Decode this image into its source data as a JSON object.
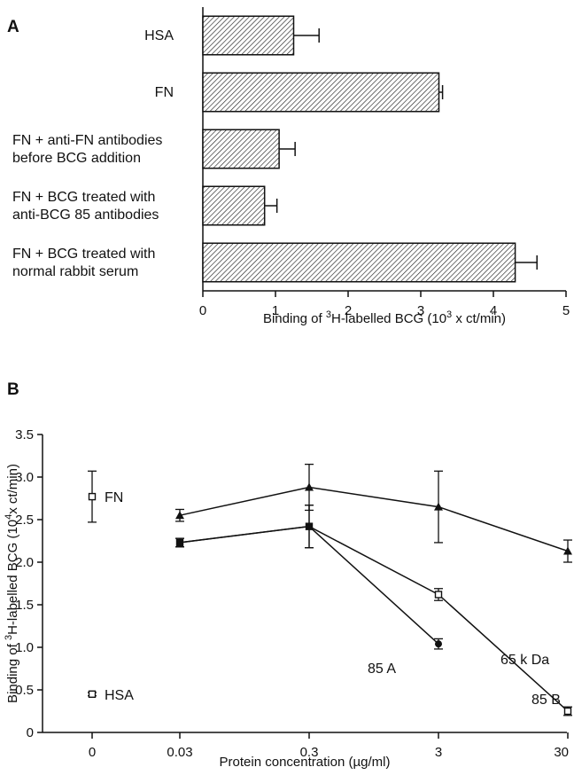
{
  "chart_data": [
    {
      "panel": "A",
      "type": "bar",
      "orientation": "horizontal",
      "categories": [
        [
          "HSA"
        ],
        [
          "FN"
        ],
        [
          "FN + anti-FN antibodies",
          "before BCG addition"
        ],
        [
          "FN + BCG treated with",
          "anti-BCG 85 antibodies"
        ],
        [
          "FN + BCG treated with",
          "normal rabbit serum"
        ]
      ],
      "values": [
        1.25,
        3.25,
        1.05,
        0.85,
        4.3
      ],
      "errors": [
        0.35,
        0.05,
        0.22,
        0.17,
        0.3
      ],
      "xlabel_parts": [
        "Binding of ",
        "3",
        "H-labelled BCG (10",
        "3",
        " x ct/min)"
      ],
      "xlim": [
        0,
        5
      ],
      "xticks": [
        "0",
        "1",
        "2",
        "3",
        "4",
        "5"
      ],
      "bar_fill": "hatched"
    },
    {
      "panel": "B",
      "type": "line",
      "x": [
        "0.03",
        "0.3",
        "3",
        "30"
      ],
      "x_scale": "log",
      "xticks": [
        "0",
        "0.03",
        "0.3",
        "3",
        "30"
      ],
      "xlabel": "Protein concentration (µg/ml)",
      "ylabel_parts": [
        "Binding of ",
        "3",
        "H-labelled BCG (10",
        "4",
        "x ct/min)"
      ],
      "ylim": [
        0,
        3.5
      ],
      "yticks": [
        "0",
        "0.5",
        "1.0",
        "1.5",
        "2.0",
        "2.5",
        "3.0",
        "3.5"
      ],
      "series": [
        {
          "name": "65 k Da",
          "marker": "triangle",
          "x": [
            "0.03",
            "0.3",
            "3",
            "30"
          ],
          "values": [
            2.55,
            2.88,
            2.65,
            2.13
          ],
          "errors": [
            0.07,
            0.27,
            0.42,
            0.13
          ]
        },
        {
          "name": "85 B",
          "marker": "open-square",
          "x": [
            "0.03",
            "0.3",
            "3",
            "30"
          ],
          "values": [
            2.23,
            2.42,
            1.62,
            0.25
          ],
          "errors": [
            0.05,
            0.25,
            0.07,
            0.05
          ]
        },
        {
          "name": "85 A",
          "marker": "filled-circle",
          "x": [
            "0.03",
            "0.3",
            "3"
          ],
          "values": [
            2.23,
            2.42,
            1.04
          ],
          "errors": [
            0.05,
            0.25,
            0.06
          ]
        }
      ],
      "controls": [
        {
          "name": "FN",
          "x": "0",
          "value": 2.77,
          "error": 0.3,
          "marker": "open-square"
        },
        {
          "name": "HSA",
          "x": "0",
          "value": 0.45,
          "error": 0.02,
          "marker": "open-square"
        }
      ]
    }
  ]
}
